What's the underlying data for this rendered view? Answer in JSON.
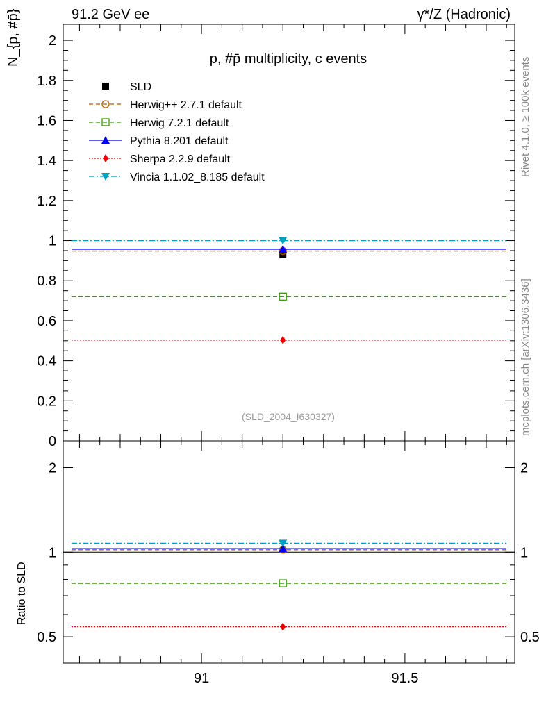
{
  "header": {
    "left": "91.2 GeV ee",
    "right": "γ*/Z (Hadronic)"
  },
  "side_labels": {
    "rivet": "Rivet 4.1.0, ≥ 100k events",
    "mcplots": "mcplots.cern.ch [arXiv:1306.3436]"
  },
  "chart_data": [
    {
      "type": "scatter",
      "title": "p, #p̄ multiplicity, c events",
      "ylabel": "N_{p, #p̄}",
      "xlim": [
        90.66,
        91.77
      ],
      "ylim": [
        0,
        2.08
      ],
      "yticks": [
        0,
        0.2,
        0.4,
        0.6,
        0.8,
        1,
        1.2,
        1.4,
        1.6,
        1.8,
        2
      ],
      "ytick_labels": [
        "0",
        "0.2",
        "0.4",
        "0.6",
        "0.8",
        "1",
        "1.2",
        "1.4",
        "1.6",
        "1.8",
        "2"
      ],
      "annotation": "(SLD_2004_I630327)",
      "legend_position": "top-left",
      "series": [
        {
          "name": "SLD",
          "x": 91.2,
          "value": 0.93,
          "color": "#000000",
          "marker": "square",
          "line": "none"
        },
        {
          "name": "Herwig++ 2.7.1 default",
          "x": 91.2,
          "value": 0.948,
          "color": "#b35a00",
          "marker": "open-circle",
          "line": "dashed"
        },
        {
          "name": "Herwig 7.2.1 default",
          "x": 91.2,
          "value": 0.72,
          "color": "#339900",
          "marker": "open-square",
          "line": "dashed"
        },
        {
          "name": "Pythia 8.201 default",
          "x": 91.2,
          "value": 0.957,
          "color": "#0000ee",
          "marker": "triangle-up",
          "line": "solid"
        },
        {
          "name": "Sherpa 2.2.9 default",
          "x": 91.2,
          "value": 0.503,
          "color": "#ee0000",
          "marker": "diamond",
          "line": "dotted"
        },
        {
          "name": "Vincia 1.1.02_8.185 default",
          "x": 91.2,
          "value": 1.0,
          "color": "#00a0c0",
          "marker": "triangle-down",
          "line": "dashdot"
        }
      ]
    },
    {
      "type": "scatter",
      "ylabel": "Ratio to SLD",
      "yscale": "log",
      "ylim": [
        0.403,
        2.49
      ],
      "xlim": [
        90.66,
        91.77
      ],
      "yticks": [
        0.5,
        1,
        2
      ],
      "ytick_labels": [
        "0.5",
        "1",
        "2"
      ],
      "xticks": [
        91,
        91.5
      ],
      "xtick_labels": [
        "91",
        "91.5"
      ],
      "series": [
        {
          "name": "Herwig++ 2.7.1 default",
          "value": 1.02
        },
        {
          "name": "Herwig 7.2.1 default",
          "value": 0.775
        },
        {
          "name": "Pythia 8.201 default",
          "value": 1.03
        },
        {
          "name": "Sherpa 2.2.9 default",
          "value": 0.543
        },
        {
          "name": "Vincia 1.1.02_8.185 default",
          "value": 1.076
        }
      ]
    }
  ]
}
